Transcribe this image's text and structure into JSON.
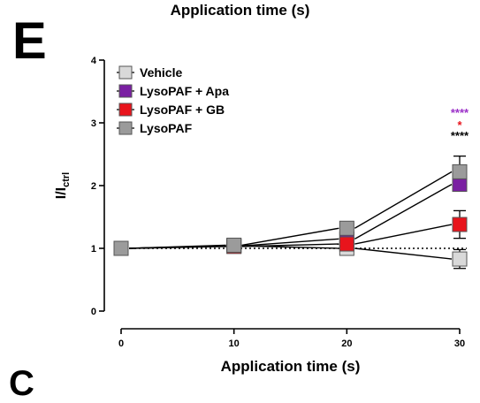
{
  "figure": {
    "top_title": "Application time (s)",
    "panel_letter": "E",
    "next_panel_letter": "C"
  },
  "chart_data": {
    "type": "line",
    "xlabel": "Application time (s)",
    "ylabel": "I/I",
    "ylabel_subscript": "ctrl",
    "x": [
      0,
      10,
      20,
      30
    ],
    "x_ticks": [
      "0",
      "10",
      "20",
      "30"
    ],
    "y_ticks": [
      "0",
      "1",
      "2",
      "3",
      "4"
    ],
    "xlim": [
      0,
      30
    ],
    "ylim": [
      0,
      4
    ],
    "reference_line": {
      "y": 1,
      "style": "dotted"
    },
    "legend_position": "top-left",
    "series": [
      {
        "name": "Vehicle",
        "color": "#d9d9d9",
        "values": [
          1.0,
          1.04,
          1.0,
          0.83
        ],
        "err": [
          0.0,
          0.02,
          0.05,
          0.15
        ]
      },
      {
        "name": "LysoPAF + Apa",
        "color": "#7a1fa2",
        "values": [
          1.0,
          1.04,
          1.15,
          2.02
        ],
        "err": [
          0.0,
          0.02,
          0.07,
          0.1
        ]
      },
      {
        "name": "LysoPAF + GB",
        "color": "#e8141c",
        "values": [
          1.0,
          1.03,
          1.07,
          1.38
        ],
        "err": [
          0.0,
          0.02,
          0.05,
          0.22
        ]
      },
      {
        "name": "LysoPAF",
        "color": "#9b9b9b",
        "values": [
          1.0,
          1.05,
          1.32,
          2.22
        ],
        "err": [
          0.0,
          0.03,
          0.1,
          0.25
        ]
      }
    ],
    "annotations": [
      {
        "text": "****",
        "color": "#9b30c8",
        "x": 30
      },
      {
        "text": "*",
        "color": "#e8141c",
        "x": 30
      },
      {
        "text": "****",
        "color": "#000000",
        "x": 30
      }
    ]
  }
}
